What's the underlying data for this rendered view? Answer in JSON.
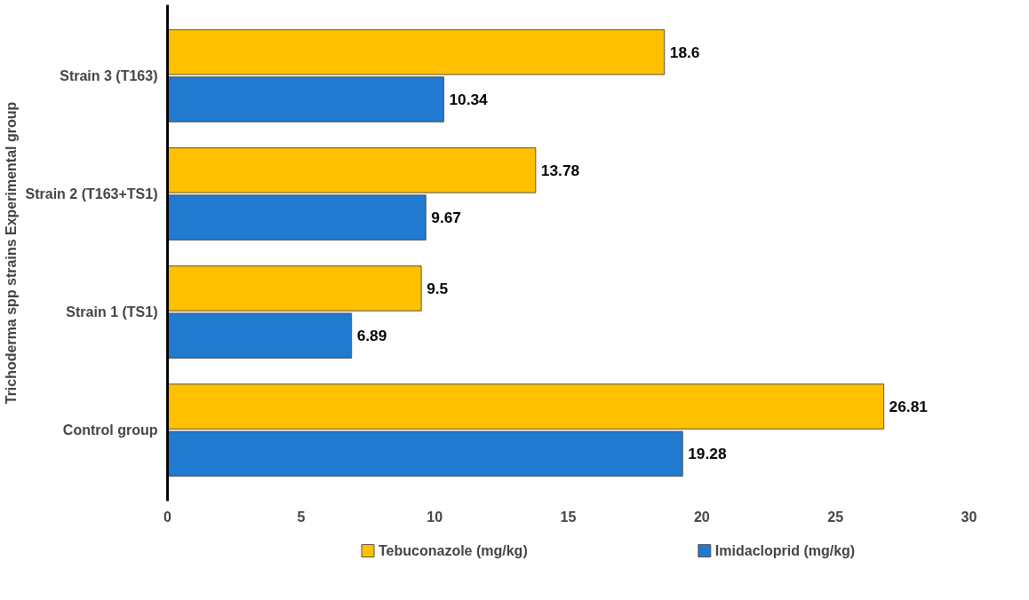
{
  "chart_data": {
    "type": "bar",
    "orientation": "horizontal",
    "ylabel": "Trichoderma spp strains Experimental group",
    "categories": [
      "Strain 3 (T163)",
      "Strain 2 (T163+TS1)",
      "Strain 1 (TS1)",
      "Control group"
    ],
    "series": [
      {
        "name": "Tebuconazole (mg/kg)",
        "color": "#ffc000",
        "values": [
          18.6,
          13.78,
          9.5,
          26.81
        ]
      },
      {
        "name": "Imidacloprid (mg/kg)",
        "color": "#1f7ad0",
        "values": [
          10.34,
          9.67,
          6.89,
          19.28
        ]
      }
    ],
    "xlim": [
      0,
      30
    ],
    "xticks": [
      0,
      5,
      10,
      15,
      20,
      25,
      30
    ],
    "data_labels": true,
    "legend": "bottom",
    "grid": false
  }
}
